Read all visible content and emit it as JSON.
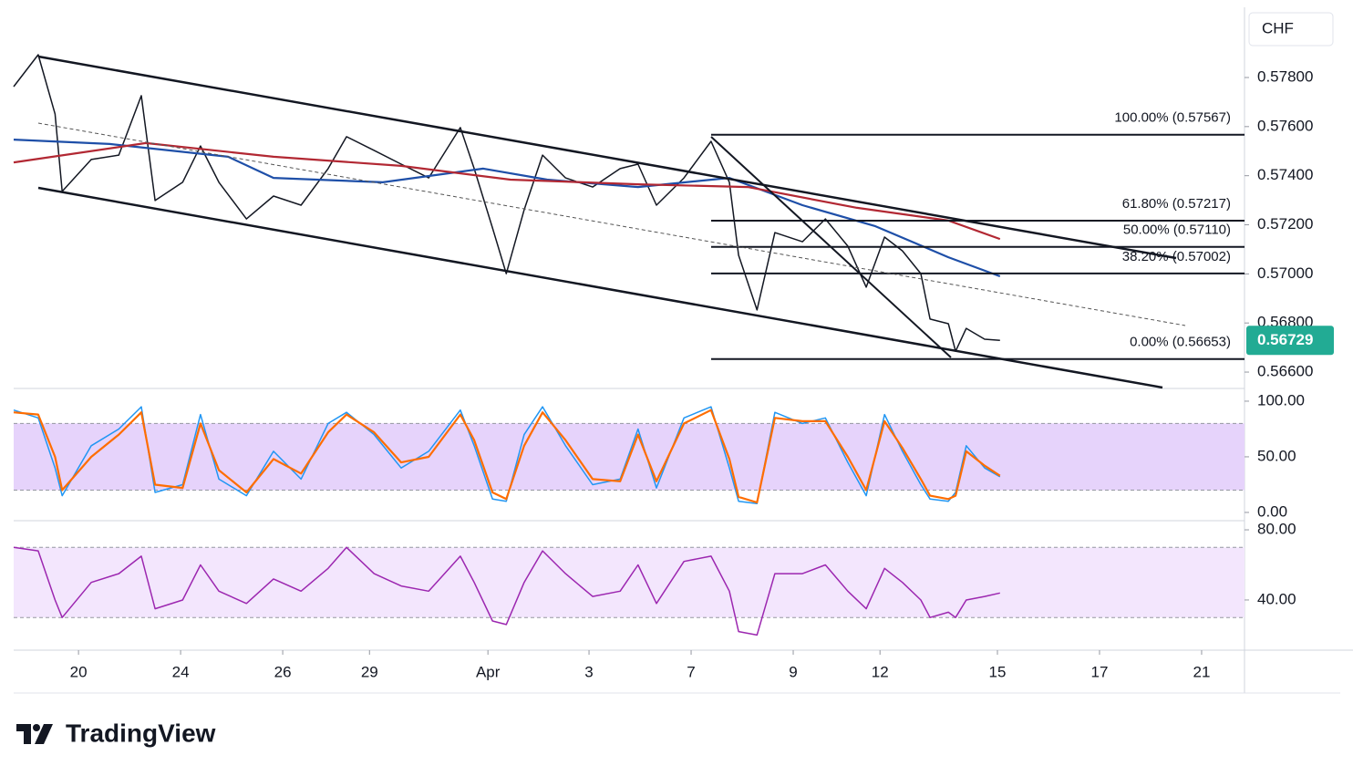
{
  "chart_data": [
    {
      "type": "line",
      "unit_label": "CHF",
      "xlim": [
        -1.27,
        22.84
      ],
      "xticks": [
        {
          "value": 0,
          "label": "20"
        },
        {
          "value": 2,
          "label": "24"
        },
        {
          "value": 4,
          "label": "26"
        },
        {
          "value": 5.7,
          "label": "29"
        },
        {
          "value": 8.02,
          "label": "Apr"
        },
        {
          "value": 10,
          "label": "3"
        },
        {
          "value": 12,
          "label": "7"
        },
        {
          "value": 14,
          "label": "9"
        },
        {
          "value": 15.7,
          "label": "12"
        },
        {
          "value": 18,
          "label": "15"
        },
        {
          "value": 20,
          "label": "17"
        },
        {
          "value": 22,
          "label": "21"
        }
      ],
      "ylim": [
        0.56537,
        0.58086
      ],
      "yticks": [
        {
          "value": 0.566,
          "label": "0.56600"
        },
        {
          "value": 0.568,
          "label": "0.56800"
        },
        {
          "value": 0.57,
          "label": "0.57000"
        },
        {
          "value": 0.572,
          "label": "0.57200"
        },
        {
          "value": 0.574,
          "label": "0.57400"
        },
        {
          "value": 0.576,
          "label": "0.57600"
        },
        {
          "value": 0.578,
          "label": "0.57800"
        }
      ],
      "x": [
        -1.27,
        -0.79,
        -0.46,
        -0.32,
        0.25,
        0.79,
        1.23,
        1.5,
        2.04,
        2.39,
        2.75,
        3.29,
        3.82,
        4.36,
        4.89,
        5.25,
        5.79,
        6.32,
        6.86,
        7.48,
        7.75,
        8.11,
        8.38,
        8.73,
        9.09,
        9.54,
        10.07,
        10.61,
        10.96,
        11.32,
        11.86,
        12.39,
        12.75,
        12.93,
        13.29,
        13.64,
        14.18,
        14.63,
        15.07,
        15.43,
        15.79,
        16.14,
        16.5,
        16.68,
        17.04,
        17.18,
        17.39,
        17.75,
        18.05
      ],
      "series": [
        {
          "color": "#131722",
          "values": [
            0.57763,
            0.57893,
            0.57651,
            0.57336,
            0.57466,
            0.57484,
            0.57726,
            0.57299,
            0.57373,
            0.57521,
            0.57373,
            0.57224,
            0.57317,
            0.5728,
            0.57429,
            0.57559,
            0.57503,
            0.57447,
            0.57391,
            0.57596,
            0.57429,
            0.57187,
            0.57001,
            0.57261,
            0.57484,
            0.57391,
            0.57354,
            0.57429,
            0.57447,
            0.5728,
            0.57391,
            0.5754,
            0.57373,
            0.57076,
            0.56853,
            0.57168,
            0.57131,
            0.57224,
            0.57113,
            0.56946,
            0.5715,
            0.57094,
            0.57001,
            0.56816,
            0.56797,
            0.56685,
            0.56778,
            0.56734,
            0.56729
          ]
        },
        {
          "color": "#1e4fa8",
          "x": [
            -1.27,
            0.61,
            2.93,
            3.82,
            5.96,
            7.93,
            9.18,
            10.96,
            12.75,
            14.18,
            15.61,
            17.04,
            18.05
          ],
          "values": [
            0.57547,
            0.57529,
            0.57477,
            0.57391,
            0.57373,
            0.57429,
            0.57384,
            0.57354,
            0.57391,
            0.5728,
            0.57194,
            0.57068,
            0.5699
          ]
        },
        {
          "color": "#b22833",
          "x": [
            -1.27,
            1.32,
            3.82,
            6.32,
            8.46,
            10.96,
            13.11,
            15.25,
            17.04,
            18.05
          ],
          "values": [
            0.57454,
            0.57533,
            0.57477,
            0.5744,
            0.57384,
            0.57365,
            0.57354,
            0.57269,
            0.57217,
            0.57142
          ]
        }
      ],
      "fib_levels": [
        {
          "value": 0.57567,
          "label": "100.00% (0.57567)"
        },
        {
          "value": 0.57217,
          "label": "61.80% (0.57217)"
        },
        {
          "value": 0.5711,
          "label": "50.00% (0.57110)"
        },
        {
          "value": 0.57002,
          "label": "38.20% (0.57002)"
        },
        {
          "value": 0.56653,
          "label": "0.00% (0.56653)"
        }
      ],
      "last_price": {
        "value": 0.56729,
        "label": "0.56729",
        "color": "#22ab94"
      }
    },
    {
      "type": "line",
      "ylim": [
        -6.6,
        109.8
      ],
      "yticks": [
        {
          "value": 0,
          "label": "0.00"
        },
        {
          "value": 50,
          "label": "50.00"
        },
        {
          "value": 100,
          "label": "100.00"
        }
      ],
      "bands": [
        20,
        80
      ],
      "band_color": "#e6d3fb",
      "x": [
        -1.27,
        -0.79,
        -0.46,
        -0.32,
        0.25,
        0.79,
        1.23,
        1.5,
        2.04,
        2.39,
        2.75,
        3.29,
        3.82,
        4.36,
        4.89,
        5.25,
        5.79,
        6.32,
        6.86,
        7.48,
        7.75,
        8.11,
        8.38,
        8.73,
        9.09,
        9.54,
        10.07,
        10.61,
        10.96,
        11.32,
        11.86,
        12.39,
        12.75,
        12.93,
        13.29,
        13.64,
        14.18,
        14.63,
        15.07,
        15.43,
        15.79,
        16.14,
        16.5,
        16.68,
        17.04,
        17.18,
        17.39,
        17.75,
        18.05
      ],
      "series": [
        {
          "color": "#2196f3",
          "values": [
            92,
            85,
            40,
            15,
            60,
            75,
            95,
            18,
            25,
            88,
            30,
            15,
            55,
            30,
            80,
            90,
            70,
            40,
            55,
            92,
            60,
            12,
            10,
            70,
            95,
            60,
            25,
            30,
            75,
            22,
            85,
            95,
            40,
            10,
            8,
            90,
            80,
            85,
            45,
            15,
            88,
            55,
            25,
            12,
            10,
            18,
            60,
            40,
            32
          ]
        },
        {
          "color": "#ff6d00",
          "values": [
            90,
            88,
            50,
            20,
            50,
            70,
            90,
            25,
            22,
            80,
            38,
            18,
            48,
            35,
            72,
            88,
            72,
            45,
            50,
            88,
            65,
            18,
            12,
            60,
            90,
            65,
            30,
            28,
            70,
            28,
            80,
            92,
            48,
            14,
            9,
            85,
            82,
            82,
            50,
            20,
            82,
            58,
            30,
            15,
            12,
            15,
            55,
            42,
            33
          ]
        }
      ]
    },
    {
      "type": "line",
      "ylim": [
        11.9,
        84.7
      ],
      "yticks": [
        {
          "value": 40,
          "label": "40.00"
        },
        {
          "value": 80,
          "label": "80.00"
        }
      ],
      "bands": [
        30,
        70
      ],
      "band_color": "#f3e6fd",
      "x": [
        -1.27,
        -0.79,
        -0.46,
        -0.32,
        0.25,
        0.79,
        1.23,
        1.5,
        2.04,
        2.39,
        2.75,
        3.29,
        3.82,
        4.36,
        4.89,
        5.25,
        5.79,
        6.32,
        6.86,
        7.48,
        7.75,
        8.11,
        8.38,
        8.73,
        9.09,
        9.54,
        10.07,
        10.61,
        10.96,
        11.32,
        11.86,
        12.39,
        12.75,
        12.93,
        13.29,
        13.64,
        14.18,
        14.63,
        15.07,
        15.43,
        15.79,
        16.14,
        16.5,
        16.68,
        17.04,
        17.18,
        17.39,
        17.75,
        18.05
      ],
      "series": [
        {
          "color": "#9c27b0",
          "values": [
            70,
            68,
            40,
            30,
            50,
            55,
            65,
            35,
            40,
            60,
            45,
            38,
            52,
            45,
            58,
            70,
            55,
            48,
            45,
            65,
            50,
            28,
            26,
            50,
            68,
            55,
            42,
            45,
            60,
            38,
            62,
            65,
            45,
            22,
            20,
            55,
            55,
            60,
            45,
            35,
            58,
            50,
            40,
            30,
            33,
            30,
            40,
            42,
            44
          ]
        }
      ]
    }
  ],
  "footer": {
    "brand": "TradingView"
  }
}
